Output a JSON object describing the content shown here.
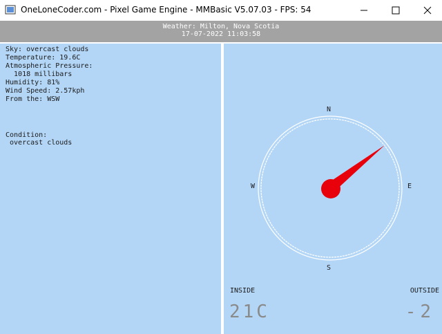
{
  "window": {
    "title": "OneLoneCoder.com - Pixel Game Engine - MMBasic V5.07.03 - FPS: 54"
  },
  "header": {
    "lines": [
      "Weather: Milton, Nova Scotia",
      "17-07-2022 11:03:58"
    ]
  },
  "left": {
    "lines": [
      "Sky: overcast clouds",
      "Temperature: 19.6C",
      "Atmospheric Pressure:",
      "  1018 millibars",
      "Humidity: 81%",
      "Wind Speed: 2.57kph",
      "From the: WSW"
    ],
    "condition": [
      "Condition:",
      " overcast clouds"
    ]
  },
  "compass": {
    "north": "N",
    "east": "E",
    "south": "S",
    "west": "W"
  },
  "inside": {
    "label": "INSIDE",
    "value": "21C"
  },
  "outside": {
    "label": "OUTSIDE",
    "value": "-2"
  }
}
